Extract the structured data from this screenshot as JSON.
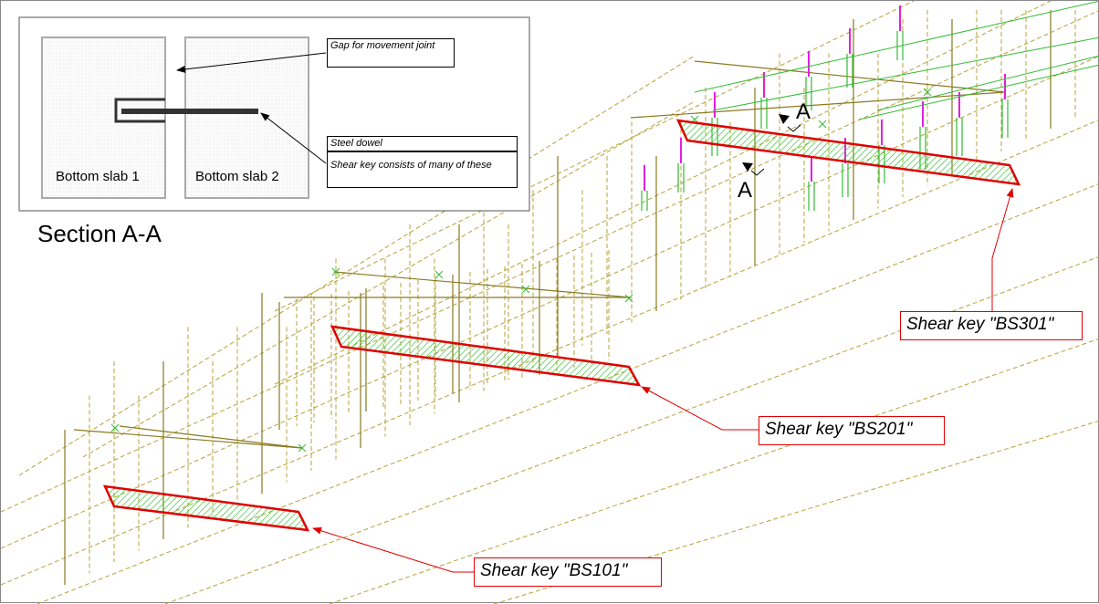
{
  "section": {
    "title": "Section A-A",
    "slab_left": "Bottom slab 1",
    "slab_right": "Bottom slab 2",
    "gap_label": "Gap for movement joint",
    "dowel_label": "Steel dowel",
    "shear_key_note": "Shear key consists of many of these"
  },
  "markers": {
    "cut_top": "A",
    "cut_bottom": "A"
  },
  "shear_keys": [
    {
      "label": "Shear key \"BS301\""
    },
    {
      "label": "Shear key \"BS201\""
    },
    {
      "label": "Shear key \"BS101\""
    }
  ],
  "colors": {
    "wire": "#b5a33a",
    "wire_dark": "#8a7a20",
    "highlight": "#e00000",
    "hatch": "#36c636",
    "rebar_green": "#33bb33",
    "rebar_magenta": "#e020e0"
  }
}
